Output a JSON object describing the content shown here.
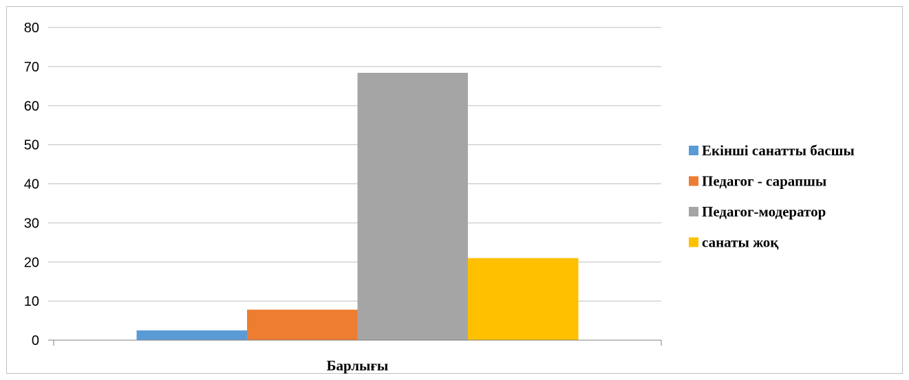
{
  "chart_data": {
    "type": "bar",
    "categories": [
      "Барлығы"
    ],
    "series": [
      {
        "name": "Екінші санатты басшы",
        "values": [
          2.5
        ],
        "color": "#5b9bd5"
      },
      {
        "name": "Педагог  - сарапшы",
        "values": [
          7.8
        ],
        "color": "#ed7d31"
      },
      {
        "name": "Педагог-модератор",
        "values": [
          68.4
        ],
        "color": "#a5a5a5"
      },
      {
        "name": "санаты жоқ",
        "values": [
          21
        ],
        "color": "#ffc000"
      }
    ],
    "ylim": [
      0,
      80
    ],
    "yticks": [
      "0",
      "10",
      "20",
      "30",
      "40",
      "50",
      "60",
      "70",
      "80"
    ],
    "grid": true,
    "legend_position": "right",
    "title": "",
    "xlabel": "",
    "ylabel": "",
    "gridline_color": "#bfbfbf",
    "axis_color": "#7f7f7f"
  }
}
